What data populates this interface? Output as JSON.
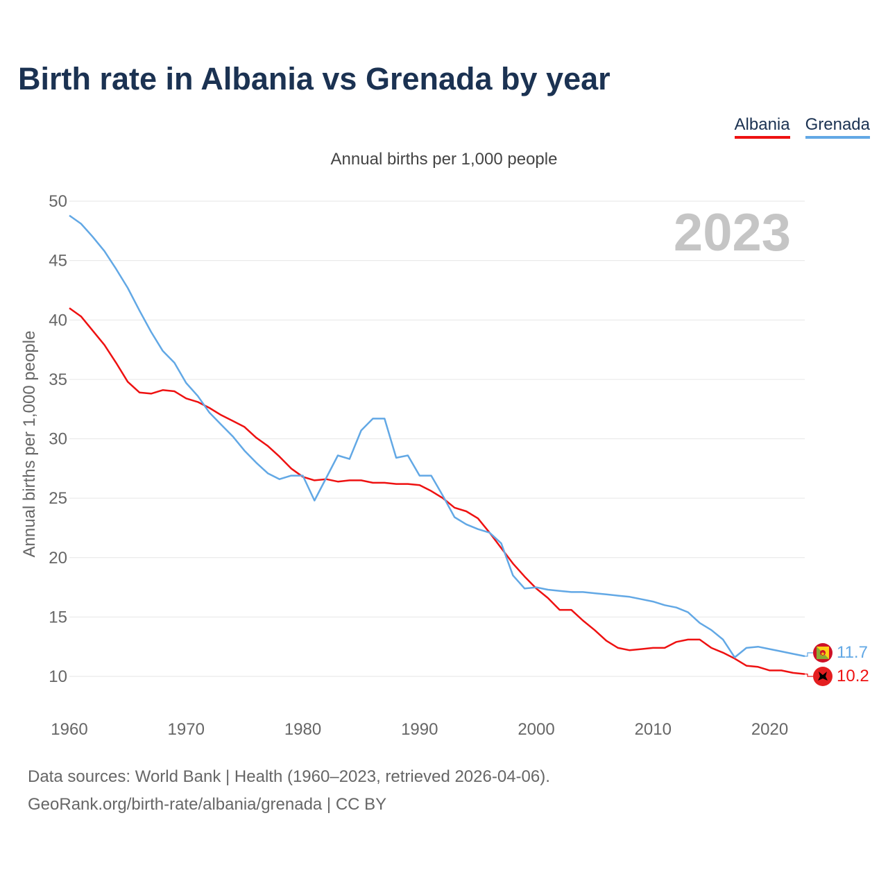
{
  "header": {
    "title": "Birth rate in Albania vs Grenada by year",
    "subtitle": "Annual births per 1,000 people",
    "current_year": "2023"
  },
  "footer": {
    "sources": "Data sources: World Bank | Health (1960–2023, retrieved 2026-04-06).",
    "credit": "GeoRank.org/birth-rate/albania/grenada | CC BY"
  },
  "colors": {
    "albania": "#ee1111",
    "grenada": "#62a8e5",
    "grid": "#e6e6e6",
    "axis_text": "#666666",
    "title": "#1b3252"
  },
  "chart_data": {
    "type": "line",
    "title": "Birth rate in Albania vs Grenada by year",
    "subtitle": "Annual births per 1,000 people",
    "xlabel": "",
    "ylabel": "Annual births per 1,000 people",
    "xlim": [
      1960,
      2023
    ],
    "ylim": [
      8,
      50
    ],
    "x_ticks": [
      1960,
      1970,
      1980,
      1990,
      2000,
      2010,
      2020
    ],
    "y_ticks": [
      10,
      15,
      20,
      25,
      30,
      35,
      40,
      45,
      50
    ],
    "legend_position": "top-right",
    "grid": true,
    "x": [
      1960,
      1961,
      1962,
      1963,
      1964,
      1965,
      1966,
      1967,
      1968,
      1969,
      1970,
      1971,
      1972,
      1973,
      1974,
      1975,
      1976,
      1977,
      1978,
      1979,
      1980,
      1981,
      1982,
      1983,
      1984,
      1985,
      1986,
      1987,
      1988,
      1989,
      1990,
      1991,
      1992,
      1993,
      1994,
      1995,
      1996,
      1997,
      1998,
      1999,
      2000,
      2001,
      2002,
      2003,
      2004,
      2005,
      2006,
      2007,
      2008,
      2009,
      2010,
      2011,
      2012,
      2013,
      2014,
      2015,
      2016,
      2017,
      2018,
      2019,
      2020,
      2021,
      2022,
      2023
    ],
    "series": [
      {
        "name": "Albania",
        "color": "#ee1111",
        "end_label": "10.2",
        "values": [
          41.0,
          40.3,
          39.1,
          37.9,
          36.4,
          34.8,
          33.9,
          33.8,
          34.1,
          34.0,
          33.4,
          33.1,
          32.6,
          32.0,
          31.5,
          31.0,
          30.1,
          29.4,
          28.5,
          27.5,
          26.8,
          26.5,
          26.6,
          26.4,
          26.5,
          26.5,
          26.3,
          26.3,
          26.2,
          26.2,
          26.1,
          25.6,
          25.0,
          24.2,
          23.9,
          23.3,
          22.1,
          20.8,
          19.5,
          18.4,
          17.4,
          16.6,
          15.6,
          15.6,
          14.7,
          13.9,
          13.0,
          12.4,
          12.2,
          12.3,
          12.4,
          12.4,
          12.9,
          13.1,
          13.1,
          12.4,
          12.0,
          11.5,
          10.9,
          10.8,
          10.5,
          10.5,
          10.3,
          10.2
        ]
      },
      {
        "name": "Grenada",
        "color": "#62a8e5",
        "end_label": "11.7",
        "values": [
          48.8,
          48.1,
          47.0,
          45.8,
          44.3,
          42.7,
          40.8,
          39.0,
          37.4,
          36.4,
          34.7,
          33.6,
          32.2,
          31.2,
          30.2,
          29.0,
          28.0,
          27.1,
          26.6,
          26.9,
          26.9,
          24.8,
          26.7,
          28.6,
          28.3,
          30.7,
          31.7,
          31.7,
          28.4,
          28.6,
          26.9,
          26.9,
          25.2,
          23.4,
          22.8,
          22.4,
          22.1,
          21.2,
          18.5,
          17.4,
          17.5,
          17.3,
          17.2,
          17.1,
          17.1,
          17.0,
          16.9,
          16.8,
          16.7,
          16.5,
          16.3,
          16.0,
          15.8,
          15.4,
          14.5,
          13.9,
          13.1,
          11.6,
          12.4,
          12.5,
          12.3,
          12.1,
          11.9,
          11.7
        ]
      }
    ]
  }
}
